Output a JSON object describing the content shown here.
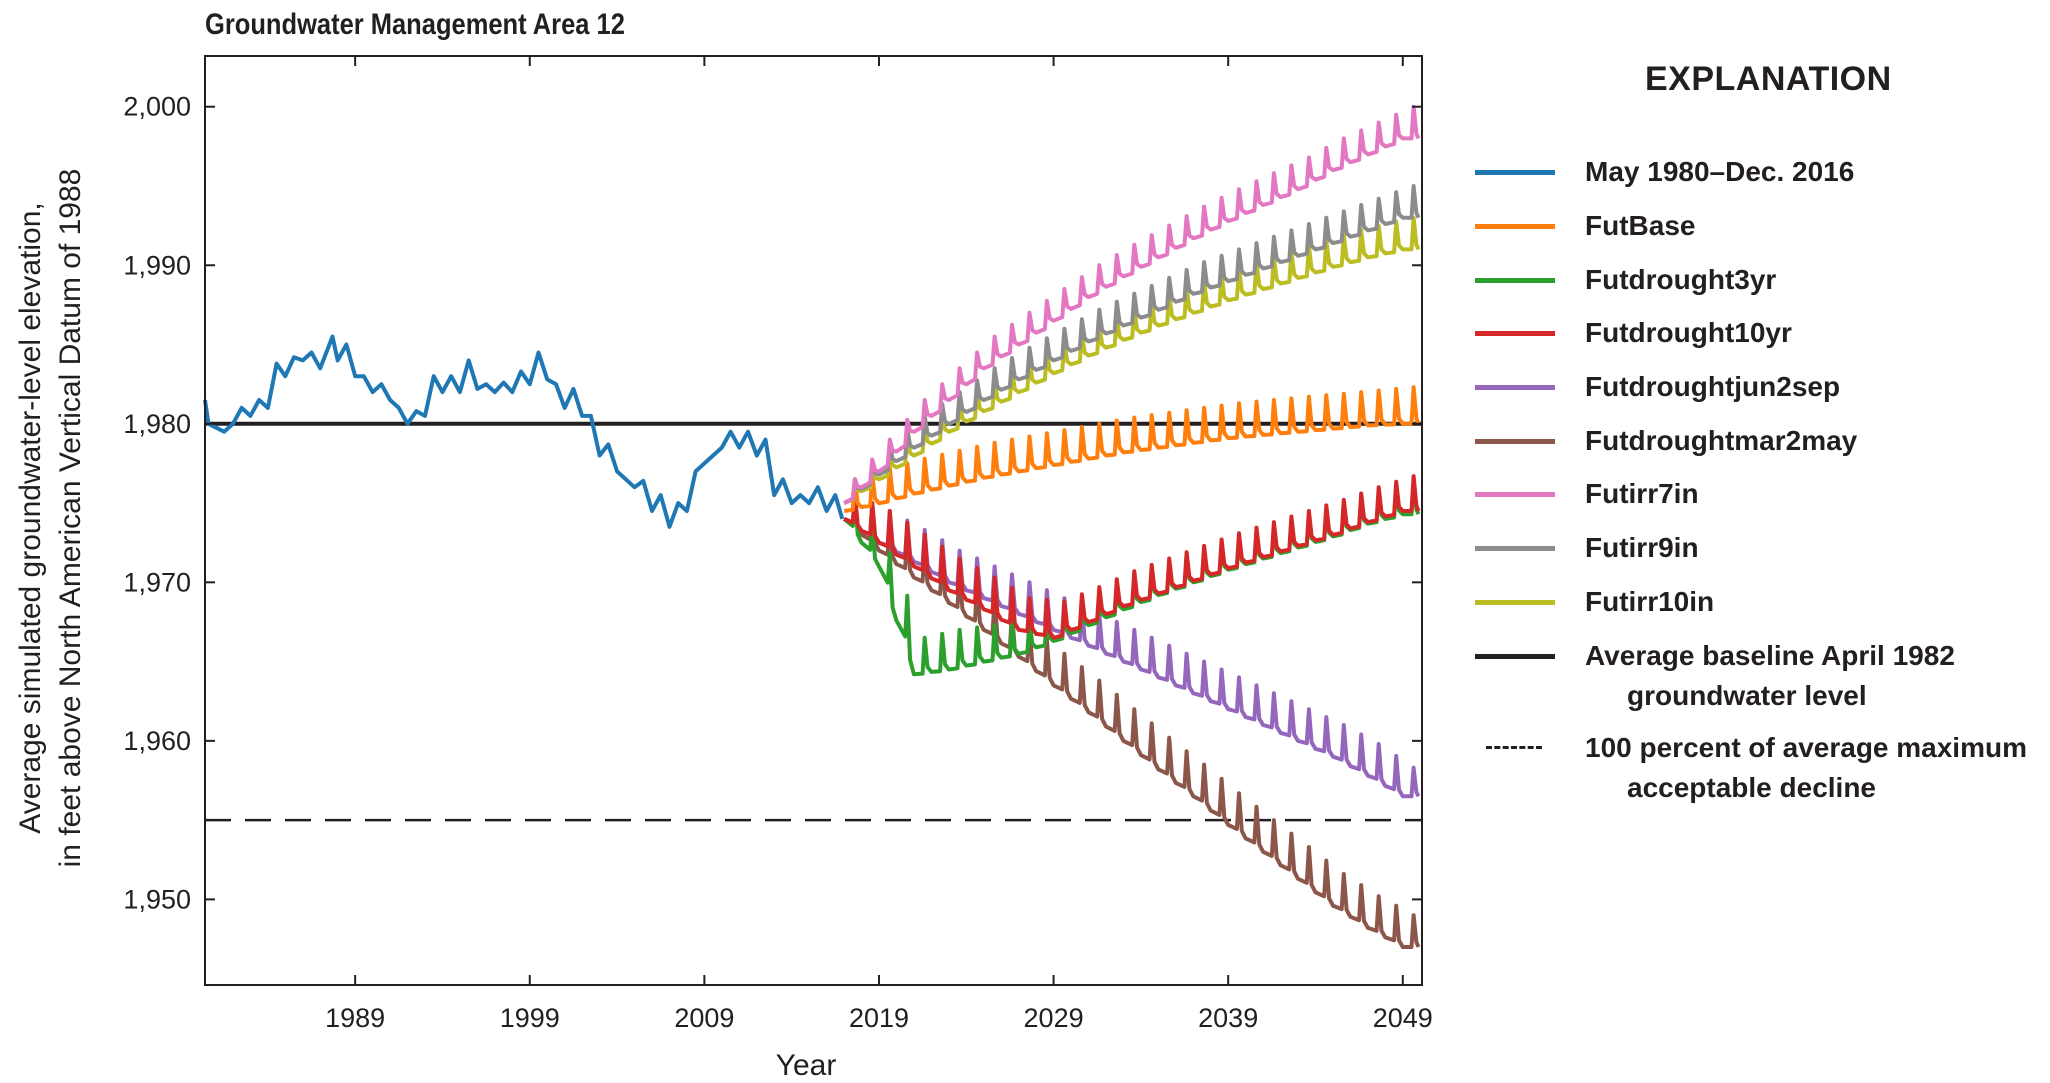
{
  "chart_data": {
    "type": "line",
    "title": "Groundwater Management Area 12",
    "xlabel": "Year",
    "ylabel": [
      "Average simulated groundwater-level elevation,",
      "in feet above North American Vertical Datum of 1988"
    ],
    "xlim": [
      1980.4,
      2050.1
    ],
    "ylim": [
      1944.6,
      2003.2
    ],
    "xticks": [
      1989,
      1999,
      2009,
      2019,
      2029,
      2039,
      2049
    ],
    "xtick_labels": [
      "1989",
      "1999",
      "2009",
      "2019",
      "2029",
      "2039",
      "2049"
    ],
    "yticks": [
      1950,
      1960,
      1970,
      1980,
      1990,
      2000
    ],
    "ytick_labels": [
      "1,950",
      "1,960",
      "1,970",
      "1,980",
      "1,990",
      "2,000"
    ],
    "grid": false,
    "legend_title": "EXPLANATION",
    "legend_placement": "right-outside",
    "historical": {
      "name": "May 1980–Dec. 2016",
      "color": "#1f77b4",
      "x": [
        1980.4,
        1980.6,
        1981.5,
        1982,
        1982.5,
        1983,
        1983.5,
        1984,
        1984.5,
        1985,
        1985.5,
        1986,
        1986.5,
        1987,
        1987.7,
        1988,
        1988.5,
        1989,
        1989.5,
        1990,
        1990.5,
        1991,
        1991.5,
        1992,
        1992.5,
        1993,
        1993.5,
        1994,
        1994.5,
        1995,
        1995.5,
        1996,
        1996.5,
        1997,
        1997.5,
        1998,
        1998.5,
        1999,
        1999.5,
        2000,
        2000.5,
        2001,
        2001.5,
        2002,
        2002.5,
        2003,
        2003.5,
        2004,
        2004.5,
        2005,
        2005.5,
        2006,
        2006.5,
        2007,
        2007.5,
        2008,
        2008.5,
        2009,
        2009.5,
        2010,
        2010.5,
        2011,
        2011.5,
        2012,
        2012.5,
        2013,
        2013.5,
        2014,
        2014.5,
        2015,
        2015.5,
        2016,
        2016.5,
        2016.9
      ],
      "y": [
        1981.5,
        1980,
        1979.5,
        1980,
        1981,
        1980.5,
        1981.5,
        1981,
        1983.8,
        1983,
        1984.2,
        1984,
        1984.5,
        1983.5,
        1985.5,
        1984,
        1985,
        1983,
        1983,
        1982,
        1982.5,
        1981.5,
        1981,
        1980,
        1980.8,
        1980.5,
        1983,
        1982,
        1983,
        1982,
        1984,
        1982.2,
        1982.5,
        1982,
        1982.6,
        1982,
        1983.3,
        1982.5,
        1984.5,
        1982.8,
        1982.5,
        1981,
        1982.2,
        1980.5,
        1980.5,
        1978,
        1978.7,
        1977,
        1976.5,
        1976,
        1976.4,
        1974.5,
        1975.5,
        1973.5,
        1975,
        1974.5,
        1977,
        1977.5,
        1978,
        1978.5,
        1979.5,
        1978.5,
        1979.5,
        1978,
        1979,
        1975.5,
        1976.5,
        1975,
        1975.5,
        1975,
        1976,
        1974.5,
        1975.5,
        1974
      ]
    },
    "scenario_years": [
      2017,
      2019,
      2021,
      2023,
      2025,
      2027,
      2029,
      2031,
      2033,
      2035,
      2037,
      2039,
      2041,
      2043,
      2045,
      2047,
      2049
    ],
    "series": [
      {
        "name": "FutBase",
        "color": "#ff7f0e",
        "annual_low": [
          1974.5,
          1975,
          1975.6,
          1976.1,
          1976.6,
          1977,
          1977.4,
          1977.8,
          1978.2,
          1978.5,
          1978.8,
          1979.1,
          1979.3,
          1979.5,
          1979.7,
          1979.9,
          1980
        ],
        "annual_high": [
          1976.5,
          1977.2,
          1977.8,
          1978.3,
          1978.8,
          1979.2,
          1979.6,
          1980,
          1980.4,
          1980.7,
          1981,
          1981.3,
          1981.5,
          1981.7,
          1981.9,
          1982.1,
          1982.3
        ]
      },
      {
        "name": "Futdrought3yr",
        "color": "#2ca02c",
        "annual_low": [
          1974,
          1971,
          1964.2,
          1964.5,
          1965,
          1965.5,
          1966.3,
          1967.3,
          1968.3,
          1969.2,
          1970,
          1970.8,
          1971.5,
          1972.2,
          1972.9,
          1973.7,
          1974.3
        ],
        "annual_high": [
          1975.5,
          1971.8,
          1966.5,
          1967,
          1967.3,
          1967.6,
          1968.3,
          1969.3,
          1970.3,
          1971.2,
          1972,
          1972.8,
          1973.5,
          1974.2,
          1974.9,
          1975.7,
          1976.3
        ]
      },
      {
        "name": "Futdrought10yr",
        "color": "#d62728",
        "annual_low": [
          1974,
          1972.5,
          1971,
          1969.5,
          1968.3,
          1967,
          1966.5,
          1967.5,
          1968.5,
          1969.3,
          1970.1,
          1970.9,
          1971.6,
          1972.3,
          1973,
          1973.8,
          1974.5
        ],
        "annual_high": [
          1975.5,
          1974.5,
          1973,
          1971.5,
          1970.3,
          1969,
          1968.8,
          1969.7,
          1970.7,
          1971.5,
          1972.3,
          1973.1,
          1973.8,
          1974.5,
          1975.2,
          1976,
          1976.7
        ]
      },
      {
        "name": "Futdroughtjun2sep",
        "color": "#9467bd",
        "annual_low": [
          1974,
          1972.5,
          1971.3,
          1970,
          1969,
          1968,
          1967,
          1966,
          1965,
          1964,
          1963,
          1962,
          1961,
          1960,
          1959,
          1957.8,
          1956.5
        ],
        "annual_high": [
          1975.5,
          1974.5,
          1973.3,
          1972,
          1971,
          1970,
          1969,
          1968,
          1967,
          1966,
          1965,
          1964,
          1963,
          1962,
          1961,
          1959.8,
          1958.3
        ]
      },
      {
        "name": "Futdroughtmar2may",
        "color": "#8c564b",
        "annual_low": [
          1974,
          1972,
          1970.3,
          1968.7,
          1967,
          1965.3,
          1963.5,
          1961.8,
          1960,
          1958.2,
          1956.5,
          1954.7,
          1953,
          1951.3,
          1949.6,
          1948.2,
          1947
        ],
        "annual_high": [
          1975.5,
          1974,
          1972.3,
          1970.7,
          1969,
          1967.3,
          1965.5,
          1963.8,
          1962,
          1960.2,
          1958.5,
          1956.7,
          1955,
          1953.3,
          1951.6,
          1950.2,
          1949
        ]
      },
      {
        "name": "Futirr7in",
        "color": "#e377c2",
        "annual_low": [
          1975,
          1977,
          1979.5,
          1981.5,
          1983.5,
          1985,
          1986.5,
          1988,
          1989.3,
          1990.5,
          1991.7,
          1992.8,
          1993.8,
          1994.8,
          1996,
          1997,
          1998
        ],
        "annual_high": [
          1976.5,
          1979,
          1981.5,
          1983.5,
          1985.5,
          1987,
          1988.5,
          1990,
          1991.3,
          1992.5,
          1993.7,
          1994.8,
          1995.8,
          1996.8,
          1998,
          1999,
          2000
        ]
      },
      {
        "name": "Futirr9in",
        "color": "#8c8c8c",
        "annual_low": [
          1975,
          1976.8,
          1978.5,
          1980,
          1981.5,
          1982.8,
          1984,
          1985.2,
          1986.2,
          1987.2,
          1988.2,
          1989,
          1989.8,
          1990.6,
          1991.4,
          1992.2,
          1993
        ],
        "annual_high": [
          1976.5,
          1978.8,
          1980.5,
          1982,
          1983.5,
          1984.8,
          1986,
          1987.2,
          1988.2,
          1989.2,
          1990.2,
          1991,
          1991.8,
          1992.6,
          1993.4,
          1994.2,
          1995
        ]
      },
      {
        "name": "Futirr10in",
        "color": "#bcbd22",
        "annual_low": [
          1975,
          1976.5,
          1978,
          1979.5,
          1980.8,
          1982,
          1983.2,
          1984.3,
          1985.3,
          1986.2,
          1987,
          1987.8,
          1988.5,
          1989.2,
          1989.9,
          1990.5,
          1991
        ],
        "annual_high": [
          1976.5,
          1978.5,
          1980,
          1981.5,
          1982.8,
          1984,
          1985.2,
          1986.3,
          1987.3,
          1988.2,
          1989,
          1989.8,
          1990.5,
          1991.2,
          1991.9,
          1992.5,
          1993
        ]
      }
    ],
    "reference_lines": [
      {
        "name": "Average baseline April 1982 groundwater level",
        "label_line1": "Average baseline April 1982",
        "label_line2": "groundwater level",
        "value": 1980,
        "color": "#231f20",
        "style": "solid"
      },
      {
        "name": "100 percent of average maximum acceptable decline",
        "label_line1": "100 percent of average maximum",
        "label_line2": "acceptable decline",
        "value": 1955,
        "color": "#231f20",
        "style": "dashed"
      }
    ]
  }
}
